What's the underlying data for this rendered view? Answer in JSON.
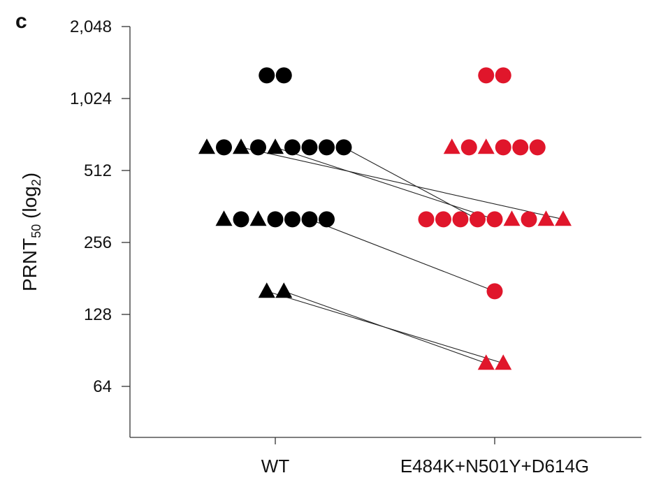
{
  "panel_label": "c",
  "chart_data": {
    "type": "scatter",
    "title": "",
    "ylabel": {
      "main": "PRNT",
      "sub1": "50",
      "mid": " (log",
      "sub2": "2",
      "end": ")"
    },
    "y_scale": "log2",
    "ylim": [
      45,
      2048
    ],
    "y_ticks": [
      {
        "value": 64,
        "label": "64"
      },
      {
        "value": 128,
        "label": "128"
      },
      {
        "value": 256,
        "label": "256"
      },
      {
        "value": 512,
        "label": "512"
      },
      {
        "value": 1024,
        "label": "1,024"
      },
      {
        "value": 2048,
        "label": "2,048"
      }
    ],
    "categories": [
      "WT",
      "E484K+N501Y+D614G"
    ],
    "series": [
      {
        "category": "WT",
        "color": "#000000",
        "groups": [
          {
            "value": 1280,
            "markers": [
              "circle",
              "circle"
            ]
          },
          {
            "value": 640,
            "markers": [
              "triangle",
              "circle",
              "triangle",
              "circle",
              "triangle",
              "circle",
              "circle",
              "circle",
              "circle"
            ]
          },
          {
            "value": 320,
            "markers": [
              "triangle",
              "circle",
              "triangle",
              "circle",
              "circle",
              "circle",
              "circle"
            ]
          },
          {
            "value": 160,
            "markers": [
              "triangle",
              "triangle"
            ]
          }
        ]
      },
      {
        "category": "E484K+N501Y+D614G",
        "color": "#e0162b",
        "groups": [
          {
            "value": 1280,
            "markers": [
              "circle",
              "circle"
            ]
          },
          {
            "value": 640,
            "markers": [
              "triangle",
              "circle",
              "triangle",
              "circle",
              "circle",
              "circle"
            ]
          },
          {
            "value": 320,
            "markers": [
              "circle",
              "circle",
              "circle",
              "circle",
              "circle",
              "triangle",
              "circle",
              "triangle",
              "triangle"
            ]
          },
          {
            "value": 160,
            "markers": [
              "circle"
            ]
          },
          {
            "value": 80,
            "markers": [
              "triangle",
              "triangle"
            ]
          }
        ]
      }
    ],
    "paired_lines": [
      {
        "from": {
          "category": "WT",
          "value": 640,
          "index": 2
        },
        "to": {
          "category": "E484K+N501Y+D614G",
          "value": 320,
          "index": 8
        }
      },
      {
        "from": {
          "category": "WT",
          "value": 640,
          "index": 4
        },
        "to": {
          "category": "E484K+N501Y+D614G",
          "value": 320,
          "index": 4
        }
      },
      {
        "from": {
          "category": "WT",
          "value": 640,
          "index": 8
        },
        "to": {
          "category": "E484K+N501Y+D614G",
          "value": 320,
          "index": 3
        }
      },
      {
        "from": {
          "category": "WT",
          "value": 320,
          "index": 5
        },
        "to": {
          "category": "E484K+N501Y+D614G",
          "value": 160,
          "index": 0
        }
      },
      {
        "from": {
          "category": "WT",
          "value": 160,
          "index": 0
        },
        "to": {
          "category": "E484K+N501Y+D614G",
          "value": 80,
          "index": 1
        }
      },
      {
        "from": {
          "category": "WT",
          "value": 160,
          "index": 1
        },
        "to": {
          "category": "E484K+N501Y+D614G",
          "value": 80,
          "index": 0
        }
      }
    ],
    "grid": false,
    "legend": "none"
  }
}
